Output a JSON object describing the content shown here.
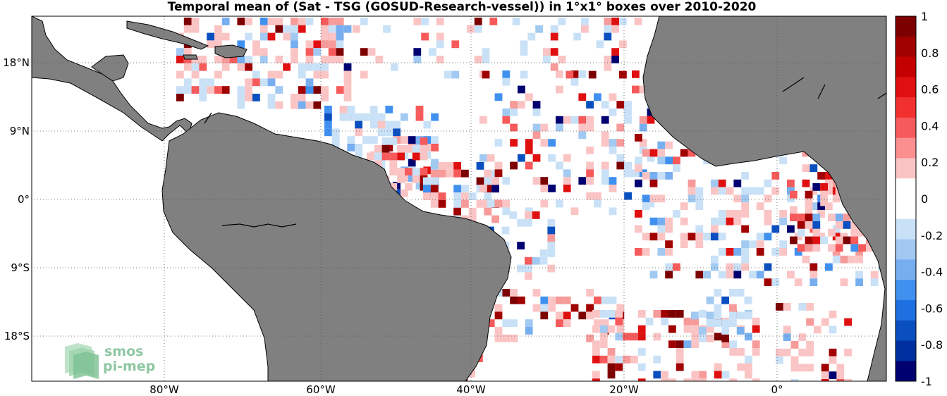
{
  "title": "Temporal mean of (Sat - TSG (GOSUD-Research-vessel)) in 1°x1° boxes over 2010-2020",
  "map": {
    "lon_ticks": [
      "80°W",
      "60°W",
      "40°W",
      "20°W",
      "0°"
    ],
    "lat_ticks": [
      "18°N",
      "9°N",
      "0°",
      "9°S",
      "18°S"
    ]
  },
  "colorbar": {
    "labels": [
      "1",
      "0.8",
      "0.6",
      "0.4",
      "0.2",
      "0",
      "-0.2",
      "-0.4",
      "-0.6",
      "-0.8",
      "-1"
    ],
    "colors": [
      "#7d0000",
      "#a00000",
      "#c40000",
      "#e01010",
      "#f23030",
      "#f65a5a",
      "#fb8f8f",
      "#fbc4c4",
      "#ffffff",
      "#ffffff",
      "#c9e1f7",
      "#a1c9f1",
      "#77aef0",
      "#4090f0",
      "#1e6fe0",
      "#0a4fc0",
      "#0030a0",
      "#000070"
    ]
  },
  "logo": {
    "line1": "smos",
    "line2": "pi-mep"
  },
  "land_color": "#808080"
}
